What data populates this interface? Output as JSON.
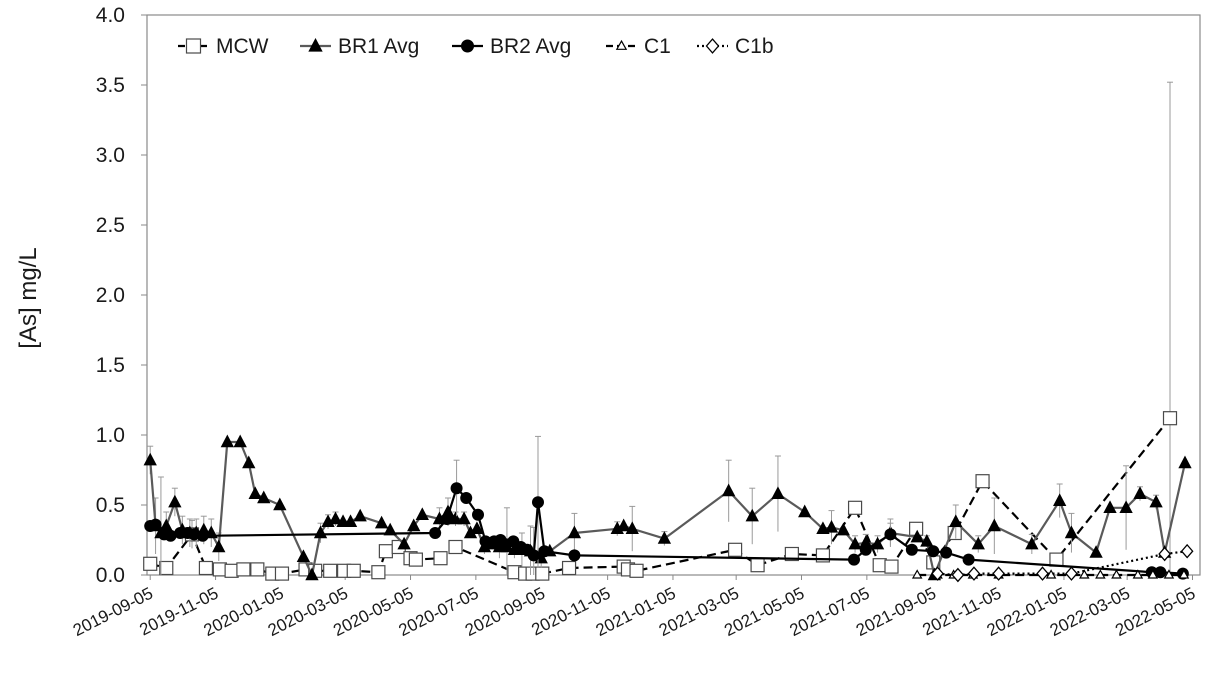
{
  "chart_data": {
    "type": "line",
    "title": "",
    "xlabel": "",
    "ylabel": "[As] mg/L",
    "ylim": [
      0,
      4.0
    ],
    "xlim": [
      "2019-09-02",
      "2022-05-12"
    ],
    "y_ticks": [
      "0.0",
      "0.5",
      "1.0",
      "1.5",
      "2.0",
      "2.5",
      "3.0",
      "3.5",
      "4.0"
    ],
    "x_ticks": [
      "2019-09-05",
      "2019-11-05",
      "2020-01-05",
      "2020-03-05",
      "2020-05-05",
      "2020-07-05",
      "2020-09-05",
      "2020-11-05",
      "2021-01-05",
      "2021-03-05",
      "2021-05-05",
      "2021-07-05",
      "2021-09-05",
      "2021-11-05",
      "2022-01-05",
      "2022-03-05",
      "2022-05-05"
    ],
    "grid": false,
    "legend_position": "top-left",
    "series": [
      {
        "name": "MCW",
        "marker": "square-open",
        "line": "dashed",
        "color": "#000000",
        "x": [
          "2019-09-05",
          "2019-09-20",
          "2019-10-14",
          "2019-10-27",
          "2019-11-09",
          "2019-11-20",
          "2019-12-01",
          "2019-12-14",
          "2019-12-28",
          "2020-01-06",
          "2020-01-28",
          "2020-02-06",
          "2020-02-20",
          "2020-03-04",
          "2020-03-13",
          "2020-04-05",
          "2020-04-12",
          "2020-04-24",
          "2020-05-05",
          "2020-05-10",
          "2020-06-02",
          "2020-06-16",
          "2020-08-10",
          "2020-08-20",
          "2020-08-27",
          "2020-09-05",
          "2020-09-30",
          "2020-11-20",
          "2020-11-24",
          "2020-12-02",
          "2021-03-04",
          "2021-03-25",
          "2021-04-26",
          "2021-05-25",
          "2021-06-24",
          "2021-07-17",
          "2021-07-28",
          "2021-08-20",
          "2021-09-05",
          "2021-09-25",
          "2021-10-21",
          "2021-12-29",
          "2022-04-14"
        ],
        "y": [
          0.08,
          0.05,
          0.29,
          0.05,
          0.04,
          0.03,
          0.04,
          0.04,
          0.01,
          0.01,
          0.04,
          0.03,
          0.03,
          0.03,
          0.03,
          0.02,
          0.17,
          0.2,
          0.12,
          0.11,
          0.12,
          0.2,
          0.02,
          0.01,
          0.01,
          0.01,
          0.05,
          0.06,
          0.04,
          0.03,
          0.18,
          0.07,
          0.15,
          0.14,
          0.48,
          0.07,
          0.06,
          0.33,
          0.09,
          0.3,
          0.67,
          0.11,
          1.12
        ],
        "err": [
          0,
          0,
          0.1,
          0,
          0,
          0,
          0,
          0,
          0,
          0,
          0,
          0,
          0,
          0,
          0,
          0,
          0,
          0,
          0,
          0,
          0,
          0,
          0,
          0,
          0,
          0,
          0,
          0,
          0,
          0,
          0,
          0,
          0,
          0,
          0,
          0,
          0,
          0,
          0,
          0,
          0,
          0,
          2.4
        ]
      },
      {
        "name": "BR1 Avg",
        "marker": "triangle-filled",
        "line": "solid",
        "color": "#5a5a5a",
        "x": [
          "2019-09-05",
          "2019-09-10",
          "2019-09-15",
          "2019-09-20",
          "2019-09-28",
          "2019-10-05",
          "2019-10-12",
          "2019-10-18",
          "2019-10-25",
          "2019-11-01",
          "2019-11-08",
          "2019-11-16",
          "2019-11-28",
          "2019-12-06",
          "2019-12-12",
          "2019-12-20",
          "2020-01-04",
          "2020-01-26",
          "2020-02-03",
          "2020-02-11",
          "2020-02-18",
          "2020-02-25",
          "2020-03-03",
          "2020-03-10",
          "2020-03-19",
          "2020-04-08",
          "2020-04-16",
          "2020-04-29",
          "2020-05-08",
          "2020-05-16",
          "2020-06-01",
          "2020-06-09",
          "2020-06-16",
          "2020-06-24",
          "2020-06-30",
          "2020-07-06",
          "2020-07-13",
          "2020-07-20",
          "2020-07-27",
          "2020-08-03",
          "2020-08-10",
          "2020-08-17",
          "2020-08-25",
          "2020-09-04",
          "2020-09-12",
          "2020-10-05",
          "2020-11-14",
          "2020-11-20",
          "2020-11-28",
          "2020-12-28",
          "2021-02-26",
          "2021-03-20",
          "2021-04-13",
          "2021-05-08",
          "2021-05-25",
          "2021-06-02",
          "2021-06-13",
          "2021-06-24",
          "2021-07-04",
          "2021-07-15",
          "2021-07-27",
          "2021-08-21",
          "2021-08-30",
          "2021-09-06",
          "2021-09-26",
          "2021-10-17",
          "2021-11-01",
          "2021-12-06",
          "2022-01-01",
          "2022-01-12",
          "2022-02-04",
          "2022-02-17",
          "2022-03-04",
          "2022-03-17",
          "2022-04-01",
          "2022-04-09",
          "2022-04-28"
        ],
        "y": [
          0.82,
          0.35,
          0.3,
          0.35,
          0.52,
          0.32,
          0.3,
          0.3,
          0.32,
          0.3,
          0.2,
          0.95,
          0.95,
          0.8,
          0.58,
          0.55,
          0.5,
          0.13,
          0.0,
          0.3,
          0.38,
          0.4,
          0.38,
          0.38,
          0.42,
          0.37,
          0.32,
          0.22,
          0.35,
          0.43,
          0.4,
          0.45,
          0.4,
          0.4,
          0.3,
          0.33,
          0.2,
          0.22,
          0.2,
          0.2,
          0.18,
          0.18,
          0.17,
          0.12,
          0.17,
          0.3,
          0.33,
          0.35,
          0.33,
          0.26,
          0.6,
          0.42,
          0.58,
          0.45,
          0.33,
          0.34,
          0.32,
          0.22,
          0.23,
          0.22,
          0.3,
          0.27,
          0.24,
          0.0,
          0.38,
          0.22,
          0.35,
          0.22,
          0.53,
          0.3,
          0.16,
          0.48,
          0.48,
          0.58,
          0.52,
          0.16,
          0.8
        ],
        "err": [
          0.1,
          0.2,
          0.4,
          0.1,
          0.1,
          0.1,
          0.1,
          0.1,
          0.1,
          0.1,
          0.1,
          0,
          0,
          0,
          0,
          0,
          0,
          0,
          0,
          0.07,
          0.05,
          0.05,
          0,
          0,
          0,
          0,
          0,
          0,
          0,
          0,
          0.08,
          0.1,
          0.05,
          0.05,
          0,
          0,
          0.05,
          0,
          0.08,
          0.28,
          0.06,
          0.12,
          0.18,
          0.07,
          0,
          0.14,
          0.05,
          0,
          0.16,
          0.05,
          0.22,
          0.2,
          0.27,
          0,
          0,
          0.12,
          0,
          0.06,
          0.06,
          0.06,
          0.1,
          0,
          0.04,
          0,
          0.12,
          0.06,
          0.2,
          0.07,
          0.12,
          0.14,
          0,
          0,
          0.3,
          0.05,
          0.05,
          0,
          0
        ]
      },
      {
        "name": "BR2 Avg",
        "marker": "circle-filled",
        "line": "solid",
        "color": "#000000",
        "x": [
          "2019-09-05",
          "2019-09-10",
          "2019-09-18",
          "2019-09-24",
          "2019-10-03",
          "2019-10-10",
          "2019-10-16",
          "2019-10-24",
          "2020-05-28",
          "2020-06-08",
          "2020-06-17",
          "2020-06-26",
          "2020-07-07",
          "2020-07-14",
          "2020-07-22",
          "2020-07-28",
          "2020-08-02",
          "2020-08-09",
          "2020-08-16",
          "2020-08-22",
          "2020-08-28",
          "2020-09-01",
          "2020-09-07",
          "2020-10-05",
          "2021-06-23",
          "2021-07-04",
          "2021-07-27",
          "2021-08-16",
          "2021-09-05",
          "2021-09-17",
          "2021-10-08",
          "2022-03-28",
          "2022-04-05",
          "2022-04-26"
        ],
        "y": [
          0.35,
          0.36,
          0.29,
          0.28,
          0.3,
          0.3,
          0.29,
          0.28,
          0.3,
          0.4,
          0.62,
          0.55,
          0.43,
          0.24,
          0.24,
          0.25,
          0.22,
          0.24,
          0.2,
          0.18,
          0.14,
          0.52,
          0.17,
          0.14,
          0.11,
          0.18,
          0.29,
          0.18,
          0.17,
          0.16,
          0.11,
          0.02,
          0.02,
          0.01
        ],
        "err": [
          0,
          0,
          0,
          0,
          0,
          0,
          0,
          0,
          0,
          0,
          0.2,
          0,
          0,
          0,
          0,
          0,
          0,
          0,
          0,
          0,
          0.2,
          0.47,
          0,
          0,
          0,
          0,
          0.08,
          0,
          0,
          0,
          0,
          0,
          0,
          0
        ]
      },
      {
        "name": "C1",
        "marker": "triangle-open",
        "line": "dashed",
        "color": "#000000",
        "x": [
          "2021-08-21",
          "2021-09-09",
          "2021-09-24",
          "2021-10-12",
          "2021-11-05",
          "2021-12-24",
          "2022-01-24",
          "2022-02-08",
          "2022-02-23",
          "2022-03-15",
          "2022-03-29",
          "2022-04-13",
          "2022-04-27"
        ],
        "y": [
          0.0,
          0.0,
          0.0,
          0.0,
          0.0,
          0.0,
          0.0,
          0.0,
          0.0,
          0.0,
          0.0,
          0.0,
          0.0
        ],
        "err": [
          0,
          0,
          0,
          0,
          0,
          0,
          0,
          0,
          0,
          0,
          0,
          0,
          0
        ]
      },
      {
        "name": "C1b",
        "marker": "diamond-open",
        "line": "dotted",
        "color": "#000000",
        "x": [
          "2021-09-09",
          "2021-09-28",
          "2021-10-13",
          "2021-11-05",
          "2021-12-16",
          "2022-01-12",
          "2022-04-09",
          "2022-04-30"
        ],
        "y": [
          0.01,
          0.0,
          0.01,
          0.01,
          0.01,
          0.01,
          0.15,
          0.17
        ],
        "err": [
          0,
          0,
          0,
          0,
          0,
          0,
          0,
          0
        ]
      }
    ]
  }
}
